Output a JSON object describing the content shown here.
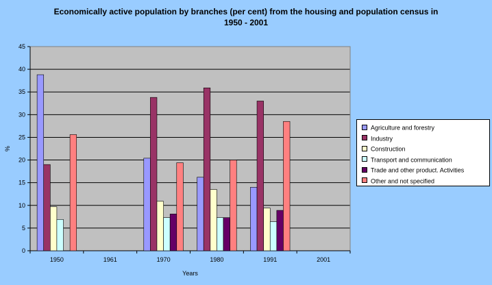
{
  "chart_data": {
    "type": "bar",
    "title_line1": "Economically active population by branches (per cent) from the housing and population census in",
    "title_line2": "1950 - 2001",
    "xlabel": "Years",
    "ylabel": "%",
    "ylim": [
      0,
      45
    ],
    "ytick_step": 5,
    "grid": true,
    "legend_position": "right",
    "categories": [
      "1950",
      "1961",
      "1970",
      "1980",
      "1991",
      "2001"
    ],
    "series": [
      {
        "name": "Agriculture and forestry",
        "color": "#9999ff",
        "values": [
          38.8,
          null,
          20.4,
          16.2,
          14.0,
          null
        ]
      },
      {
        "name": "Industry",
        "color": "#993366",
        "values": [
          19.0,
          null,
          33.8,
          35.9,
          33.0,
          null
        ]
      },
      {
        "name": "Construction",
        "color": "#ffffcc",
        "values": [
          9.7,
          null,
          10.9,
          13.5,
          9.4,
          null
        ]
      },
      {
        "name": "Transport and communication",
        "color": "#ccffff",
        "values": [
          6.9,
          null,
          7.3,
          7.3,
          6.4,
          null
        ]
      },
      {
        "name": "Trade and other product. Activities",
        "color": "#660066",
        "values": [
          null,
          null,
          8.1,
          7.3,
          8.9,
          null
        ]
      },
      {
        "name": "Other and not specified",
        "color": "#ff8080",
        "values": [
          25.6,
          null,
          19.4,
          20.0,
          28.5,
          null
        ]
      }
    ]
  }
}
